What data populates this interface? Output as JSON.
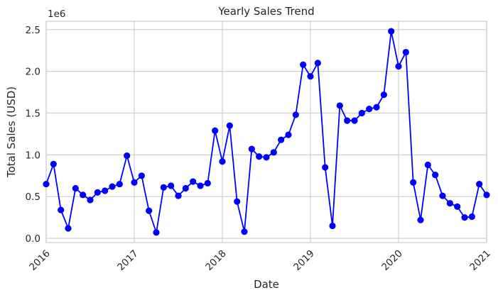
{
  "chart_data": {
    "type": "line",
    "title": "Yearly Sales Trend",
    "xlabel": "Date",
    "ylabel": "Total Sales (USD)",
    "y_offset_label": "1e6",
    "x_tick_labels": [
      "2016",
      "2017",
      "2018",
      "2019",
      "2020",
      "2021"
    ],
    "y_tick_labels": [
      "0.0",
      "0.5",
      "1.0",
      "1.5",
      "2.0",
      "2.5"
    ],
    "y_ticks": [
      0.0,
      0.5,
      1.0,
      1.5,
      2.0,
      2.5
    ],
    "xlim": [
      "2016-01",
      "2021-01"
    ],
    "ylim": [
      -0.05,
      2.6
    ],
    "grid": true,
    "line_color": "#0000ff",
    "marker": "circle",
    "series": [
      {
        "x": [
          "2016-01",
          "2016-02",
          "2016-03",
          "2016-04",
          "2016-05",
          "2016-06",
          "2016-07",
          "2016-08",
          "2016-09",
          "2016-10",
          "2016-11",
          "2016-12",
          "2017-01",
          "2017-02",
          "2017-03",
          "2017-04",
          "2017-05",
          "2017-06",
          "2017-07",
          "2017-08",
          "2017-09",
          "2017-10",
          "2017-11",
          "2017-12",
          "2018-01",
          "2018-02",
          "2018-03",
          "2018-04",
          "2018-05",
          "2018-06",
          "2018-07",
          "2018-08",
          "2018-09",
          "2018-10",
          "2018-11",
          "2018-12",
          "2019-01",
          "2019-02",
          "2019-03",
          "2019-04",
          "2019-05",
          "2019-06",
          "2019-07",
          "2019-08",
          "2019-09",
          "2019-10",
          "2019-11",
          "2019-12",
          "2020-01",
          "2020-02",
          "2020-03",
          "2020-04",
          "2020-05",
          "2020-06",
          "2020-07",
          "2020-08",
          "2020-09",
          "2020-10",
          "2020-11",
          "2020-12",
          "2021-01"
        ],
        "values": [
          0.65,
          0.89,
          0.34,
          0.12,
          0.6,
          0.52,
          0.46,
          0.55,
          0.57,
          0.62,
          0.65,
          0.99,
          0.67,
          0.75,
          0.33,
          0.07,
          0.61,
          0.63,
          0.51,
          0.6,
          0.68,
          0.63,
          0.66,
          1.29,
          0.92,
          1.35,
          0.44,
          0.08,
          1.07,
          0.98,
          0.97,
          1.03,
          1.18,
          1.24,
          1.48,
          2.08,
          1.94,
          2.1,
          0.85,
          0.15,
          1.59,
          1.41,
          1.41,
          1.5,
          1.55,
          1.57,
          1.72,
          2.48,
          2.06,
          2.23,
          0.67,
          0.22,
          0.88,
          0.76,
          0.51,
          0.42,
          0.38,
          0.25,
          0.26,
          0.65,
          0.52
        ]
      }
    ]
  }
}
